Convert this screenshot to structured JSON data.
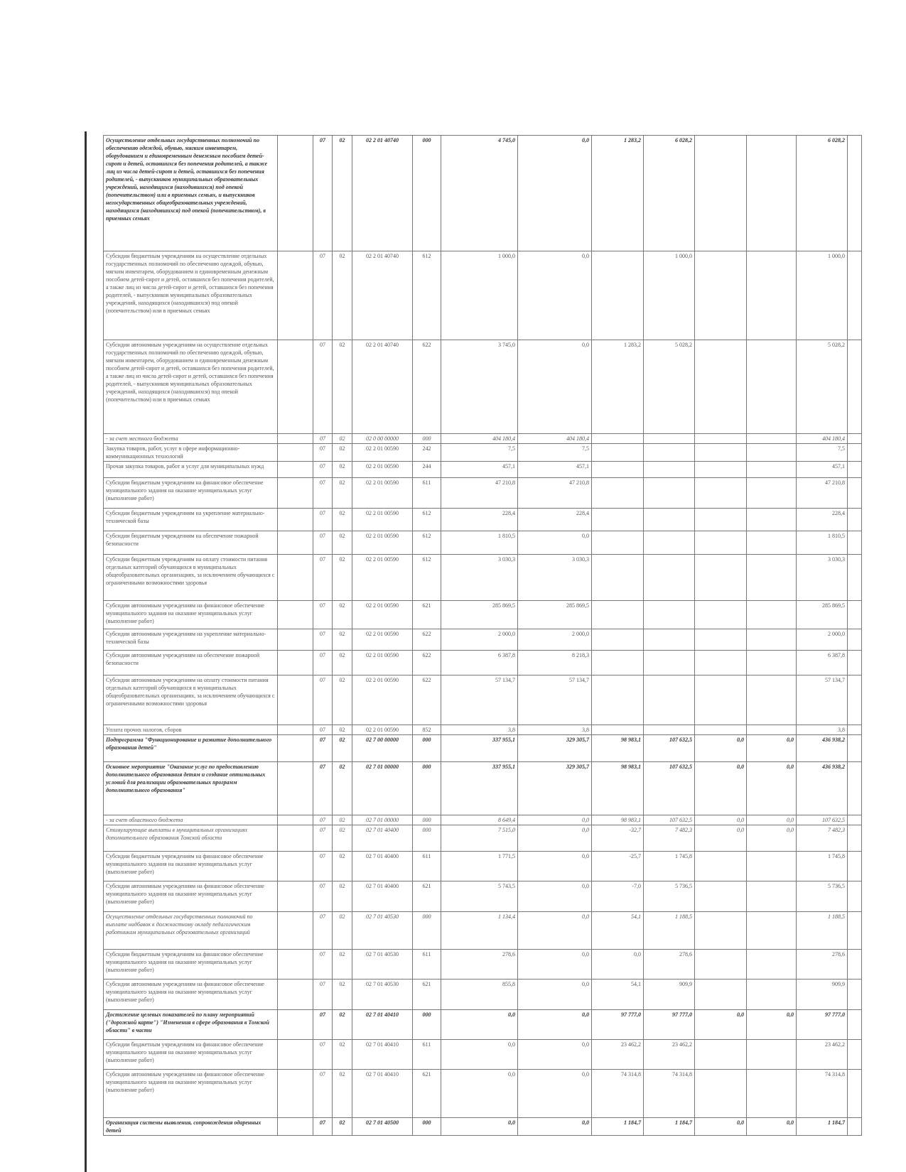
{
  "table": {
    "rows": [
      {
        "style": "bi",
        "cells": [
          "Осуществление отдельных государственных полномочий по обеспечению одеждой, обувью, мягким инвентарем, оборудованием и единовременным денежным пособием детей-сирот и детей, оставшихся без попечения родителей, а также лиц из числа детей-сирот и детей, оставшихся без попечения родителей, - выпускников муниципальных образовательных учреждений, находящихся (находившихся) под опекой (попечительством) или в приемных семьях, и выпускников негосударственных общеобразовательных учреждений, находящихся (находившихся) под опекой (попечительством), в приемных семьях",
          "07",
          "02",
          "02 2 01 40740",
          "000",
          "4 745,0",
          "0,0",
          "1 283,2",
          "6 028,2",
          "",
          "",
          "6 028,2"
        ]
      },
      {
        "style": "",
        "cells": [
          "Субсидии бюджетным учреждениям на осуществление отдельных государственных полномочий по обеспечению одеждой, обувью, мягким инвентарем, оборудованием и единовременным денежным пособием детей-сирот и детей, оставшихся без попечения родителей, а также лиц из числа детей-сирот и детей, оставшихся без попечения родителей, - выпускников муниципальных образовательных учреждений, находящихся (находившихся) под опекой (попечительством) или в приемных семьях",
          "07",
          "02",
          "02 2 01 40740",
          "612",
          "1 000,0",
          "0,0",
          "",
          "1 000,0",
          "",
          "",
          "1 000,0"
        ]
      },
      {
        "style": "",
        "cells": [
          "Субсидии автономным учреждениям на осуществление отдельных государственных полномочий по обеспечению одеждой, обувью, мягким инвентарем, оборудованием и единовременным денежным пособием детей-сирот и детей, оставшихся без попечения родителей, а также лиц из числа детей-сирот и детей, оставшихся без попечения родителей, - выпускников муниципальных образовательных учреждений, находящихся (находившихся) под опекой (попечительством) или в приемных семьях",
          "07",
          "02",
          "02 2 01 40740",
          "622",
          "3 745,0",
          "0,0",
          "1 283,2",
          "5 028,2",
          "",
          "",
          "5 028,2"
        ]
      },
      {
        "style": "i",
        "cells": [
          "- за счет местного бюджета",
          "07",
          "02",
          "02 0 00 00000",
          "000",
          "404 180,4",
          "404 180,4",
          "",
          "",
          "",
          "",
          "404 180,4"
        ]
      },
      {
        "style": "",
        "cells": [
          "Закупка товаров, работ, услуг в сфере информационно-коммуникационных технологий",
          "07",
          "02",
          "02 2 01 00590",
          "242",
          "7,5",
          "7,5",
          "",
          "",
          "",
          "",
          "7,5"
        ]
      },
      {
        "style": "",
        "cells": [
          "Прочая закупка товаров, работ и услуг для муниципальных нужд",
          "07",
          "02",
          "02 2 01 00590",
          "244",
          "457,1",
          "457,1",
          "",
          "",
          "",
          "",
          "457,1"
        ]
      },
      {
        "style": "",
        "cells": [
          "Субсидии бюджетным учреждениям на финансовое обеспечение муниципального задания на оказание муниципальных услуг (выполнение работ)",
          "07",
          "02",
          "02 2 01 00590",
          "611",
          "47 210,8",
          "47 210,8",
          "",
          "",
          "",
          "",
          "47 210,8"
        ]
      },
      {
        "style": "",
        "cells": [
          "Субсидии бюджетным учреждениям на укрепление материально-технической базы",
          "07",
          "02",
          "02 2 01 00590",
          "612",
          "228,4",
          "228,4",
          "",
          "",
          "",
          "",
          "228,4"
        ]
      },
      {
        "style": "",
        "cells": [
          "Субсидии бюджетным учреждениям на обеспечение пожарной безопасности",
          "07",
          "02",
          "02 2 01 00590",
          "612",
          "1 810,5",
          "0,0",
          "",
          "",
          "",
          "",
          "1 810,5"
        ]
      },
      {
        "style": "",
        "cells": [
          "Субсидии бюджетным учреждениям на оплату стоимости питания отдельных категорий обучающихся в муниципальных общеобразовательных организациях, за исключением обучающихся с ограниченными возможностями здоровья",
          "07",
          "02",
          "02 2 01 00590",
          "612",
          "3 030,3",
          "3 030,3",
          "",
          "",
          "",
          "",
          "3 030,3"
        ]
      },
      {
        "style": "",
        "cells": [
          "Субсидии автономным учреждениям на финансовое обеспечение муниципального задания на оказание муниципальных услуг (выполнение работ)",
          "07",
          "02",
          "02 2 01 00590",
          "621",
          "285 869,5",
          "285 869,5",
          "",
          "",
          "",
          "",
          "285 869,5"
        ]
      },
      {
        "style": "",
        "cells": [
          "Субсидии автономным учреждениям на укрепление материально-технической базы",
          "07",
          "02",
          "02 2 01 00590",
          "622",
          "2 000,0",
          "2 000,0",
          "",
          "",
          "",
          "",
          "2 000,0"
        ]
      },
      {
        "style": "",
        "cells": [
          "Субсидии автономным учреждениям на обеспечение пожарной безопасности",
          "07",
          "02",
          "02 2 01 00590",
          "622",
          "6 387,8",
          "8 218,3",
          "",
          "",
          "",
          "",
          "6 387,8"
        ]
      },
      {
        "style": "",
        "cells": [
          "Субсидии автономным учреждениям на оплату стоимости питания отдельных категорий обучающихся в муниципальных общеобразовательных организациях, за исключением обучающихся с ограниченными возможностями здоровья",
          "07",
          "02",
          "02 2 01 00590",
          "622",
          "57 134,7",
          "57 134,7",
          "",
          "",
          "",
          "",
          "57 134,7"
        ]
      },
      {
        "style": "",
        "cells": [
          "Уплата прочих налогов, сборов",
          "07",
          "02",
          "02 2 01 00590",
          "852",
          "3,8",
          "3,8",
          "",
          "",
          "",
          "",
          "3,8"
        ]
      },
      {
        "style": "bi",
        "cells": [
          "Подпрограмма \"Функционирование и развитие дополнительного образования детей\"",
          "07",
          "02",
          "02 7 00 00000",
          "000",
          "337 955,1",
          "329 305,7",
          "98 983,1",
          "107 632,5",
          "0,0",
          "0,0",
          "436 938,2"
        ]
      },
      {
        "style": "bi",
        "cells": [
          "Основное мероприятие \"Оказание услуг по предоставлению дополнительного образования детям и создание оптимальных условий для реализации образовательных программ дополнительного образования\"",
          "07",
          "02",
          "02 7 01 00000",
          "000",
          "337 955,1",
          "329 305,7",
          "98 983,1",
          "107 632,5",
          "0,0",
          "0,0",
          "436 938,2"
        ]
      },
      {
        "style": "i",
        "cells": [
          "- за счет областного бюджета",
          "07",
          "02",
          "02 7 01 00000",
          "000",
          "8 649,4",
          "0,0",
          "98 983,1",
          "107 632,5",
          "0,0",
          "0,0",
          "107 632,5"
        ]
      },
      {
        "style": "i",
        "cells": [
          "Стимулирующие выплаты в муниципальных организациях дополнительного образования Томской области",
          "07",
          "02",
          "02 7 01 40400",
          "000",
          "7 515,0",
          "0,0",
          "-32,7",
          "7 482,3",
          "0,0",
          "0,0",
          "7 482,3"
        ]
      },
      {
        "style": "",
        "cells": [
          "Субсидии бюджетным учреждениям на финансовое обеспечение муниципального задания на оказание муниципальных услуг (выполнение работ)",
          "07",
          "02",
          "02 7 01 40400",
          "611",
          "1 771,5",
          "0,0",
          "-25,7",
          "1 745,8",
          "",
          "",
          "1 745,8"
        ]
      },
      {
        "style": "",
        "cells": [
          "Субсидии автономным учреждениям на финансовое обеспечение муниципального задания на оказание муниципальных услуг (выполнение работ)",
          "07",
          "02",
          "02 7 01 40400",
          "621",
          "5 743,5",
          "0,0",
          "-7,0",
          "5 736,5",
          "",
          "",
          "5 736,5"
        ]
      },
      {
        "style": "i",
        "cells": [
          "Осуществление отдельных государственных полномочий по выплате надбавок к должностному окладу педагогическим работникам муниципальных образовательных организаций",
          "07",
          "02",
          "02 7 01 40530",
          "000",
          "1 134,4",
          "0,0",
          "54,1",
          "1 188,5",
          "",
          "",
          "1 188,5"
        ]
      },
      {
        "style": "",
        "cells": [
          "Субсидии бюджетным учреждениям на финансовое обеспечение муниципального задания на оказание муниципальных услуг (выполнение работ)",
          "07",
          "02",
          "02 7 01 40530",
          "611",
          "278,6",
          "0,0",
          "0,0",
          "278,6",
          "",
          "",
          "278,6"
        ]
      },
      {
        "style": "",
        "cells": [
          "Субсидии автономным учреждениям на финансовое обеспечение муниципального задания на оказание муниципальных услуг (выполнение работ)",
          "07",
          "02",
          "02 7 01 40530",
          "621",
          "855,8",
          "0,0",
          "54,1",
          "909,9",
          "",
          "",
          "909,9"
        ]
      },
      {
        "style": "bi",
        "cells": [
          "Достижение целевых показателей по плану мероприятий (\"дорожной карте\") \"Изменения в сфере образования в Томской области\" в части",
          "07",
          "02",
          "02 7 01 40410",
          "000",
          "0,0",
          "0,0",
          "97 777,0",
          "97 777,0",
          "0,0",
          "0,0",
          "97 777,0"
        ]
      },
      {
        "style": "",
        "cells": [
          "Субсидии бюджетным учреждениям на финансовое обеспечение муниципального задания на оказание муниципальных услуг (выполнение работ)",
          "07",
          "02",
          "02 7 01 40410",
          "611",
          "0,0",
          "0,0",
          "23 462,2",
          "23 462,2",
          "",
          "",
          "23 462,2"
        ]
      },
      {
        "style": "",
        "cells": [
          "Субсидии автономным учреждениям на финансовое обеспечение муниципального задания на оказание муниципальных услуг (выполнение работ)",
          "07",
          "02",
          "02 7 01 40410",
          "621",
          "0,0",
          "0,0",
          "74 314,8",
          "74 314,8",
          "",
          "",
          "74 314,8"
        ]
      },
      {
        "style": "bi",
        "cells": [
          "Организация системы выявления, сопровождения одаренных детей",
          "07",
          "02",
          "02 7 01 40500",
          "000",
          "0,0",
          "0,0",
          "1 184,7",
          "1 184,7",
          "0,0",
          "0,0",
          "1 184,7"
        ]
      }
    ]
  }
}
